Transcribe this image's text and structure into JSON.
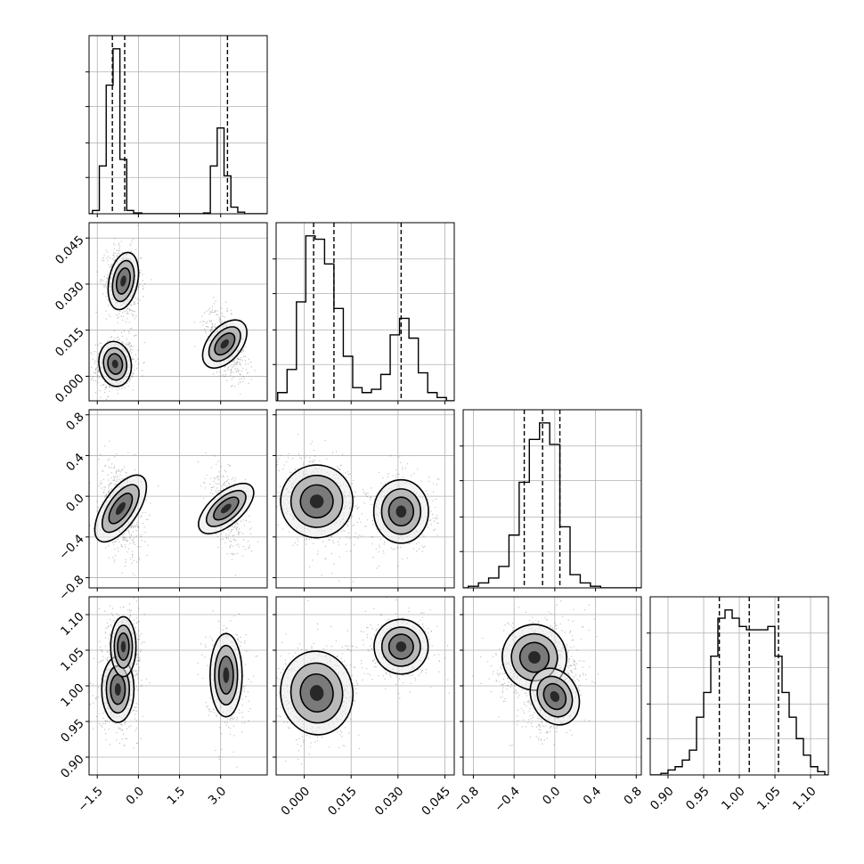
{
  "chart_data": {
    "type": "corner",
    "title": "",
    "grid": true,
    "params": [
      {
        "xlim": [
          -1.8,
          4.7
        ],
        "ticks": [
          -1.5,
          0.0,
          1.5,
          3.0
        ],
        "tick_labels": [
          "−1.5",
          "0.0",
          "1.5",
          "3.0"
        ],
        "quantiles": [
          -0.95,
          -0.5,
          3.25
        ],
        "hist": [
          {
            "x": -1.55,
            "v": 0.02
          },
          {
            "x": -1.3,
            "v": 0.29
          },
          {
            "x": -1.05,
            "v": 0.78
          },
          {
            "x": -0.8,
            "v": 1.0
          },
          {
            "x": -0.55,
            "v": 0.33
          },
          {
            "x": -0.3,
            "v": 0.02
          },
          {
            "x": 0.0,
            "v": 0.005
          },
          {
            "x": 2.5,
            "v": 0.005
          },
          {
            "x": 2.75,
            "v": 0.29
          },
          {
            "x": 3.0,
            "v": 0.52
          },
          {
            "x": 3.25,
            "v": 0.23
          },
          {
            "x": 3.5,
            "v": 0.04
          },
          {
            "x": 3.75,
            "v": 0.01
          }
        ]
      },
      {
        "xlim": [
          -0.009,
          0.048
        ],
        "ticks": [
          0.0,
          0.015,
          0.03,
          0.045
        ],
        "tick_labels": [
          "0.000",
          "0.015",
          "0.030",
          "0.045"
        ],
        "quantiles": [
          0.003,
          0.0095,
          0.031
        ],
        "hist": [
          {
            "x": -0.007,
            "v": 0.05
          },
          {
            "x": -0.004,
            "v": 0.19
          },
          {
            "x": -0.001,
            "v": 0.6
          },
          {
            "x": 0.002,
            "v": 1.0
          },
          {
            "x": 0.005,
            "v": 0.98
          },
          {
            "x": 0.008,
            "v": 0.83
          },
          {
            "x": 0.011,
            "v": 0.56
          },
          {
            "x": 0.014,
            "v": 0.27
          },
          {
            "x": 0.017,
            "v": 0.08
          },
          {
            "x": 0.02,
            "v": 0.05
          },
          {
            "x": 0.023,
            "v": 0.07
          },
          {
            "x": 0.026,
            "v": 0.16
          },
          {
            "x": 0.029,
            "v": 0.4
          },
          {
            "x": 0.032,
            "v": 0.5
          },
          {
            "x": 0.035,
            "v": 0.38
          },
          {
            "x": 0.038,
            "v": 0.17
          },
          {
            "x": 0.041,
            "v": 0.05
          },
          {
            "x": 0.044,
            "v": 0.02
          }
        ]
      },
      {
        "xlim": [
          -0.9,
          0.85
        ],
        "ticks": [
          -0.8,
          -0.4,
          0.0,
          0.4,
          0.8
        ],
        "tick_labels": [
          "−0.8",
          "−0.4",
          "0.0",
          "0.4",
          "0.8"
        ],
        "quantiles": [
          -0.3,
          -0.12,
          0.05
        ],
        "hist": [
          {
            "x": -0.8,
            "v": 0.01
          },
          {
            "x": -0.7,
            "v": 0.03
          },
          {
            "x": -0.6,
            "v": 0.06
          },
          {
            "x": -0.5,
            "v": 0.13
          },
          {
            "x": -0.4,
            "v": 0.32
          },
          {
            "x": -0.3,
            "v": 0.64
          },
          {
            "x": -0.2,
            "v": 0.9
          },
          {
            "x": -0.1,
            "v": 1.0
          },
          {
            "x": 0.0,
            "v": 0.87
          },
          {
            "x": 0.1,
            "v": 0.37
          },
          {
            "x": 0.2,
            "v": 0.08
          },
          {
            "x": 0.3,
            "v": 0.03
          },
          {
            "x": 0.4,
            "v": 0.01
          }
        ]
      },
      {
        "xlim": [
          0.875,
          1.125
        ],
        "ticks": [
          0.9,
          0.95,
          1.0,
          1.05,
          1.1
        ],
        "tick_labels": [
          "0.90",
          "0.95",
          "1.00",
          "1.05",
          "1.10"
        ],
        "quantiles": [
          0.972,
          1.014,
          1.055
        ],
        "hist": [
          {
            "x": 0.895,
            "v": 0.01
          },
          {
            "x": 0.905,
            "v": 0.03
          },
          {
            "x": 0.915,
            "v": 0.05
          },
          {
            "x": 0.925,
            "v": 0.09
          },
          {
            "x": 0.935,
            "v": 0.15
          },
          {
            "x": 0.945,
            "v": 0.35
          },
          {
            "x": 0.955,
            "v": 0.5
          },
          {
            "x": 0.965,
            "v": 0.72
          },
          {
            "x": 0.975,
            "v": 0.95
          },
          {
            "x": 0.985,
            "v": 1.0
          },
          {
            "x": 0.995,
            "v": 0.95
          },
          {
            "x": 1.005,
            "v": 0.9
          },
          {
            "x": 1.015,
            "v": 0.88
          },
          {
            "x": 1.025,
            "v": 0.88
          },
          {
            "x": 1.035,
            "v": 0.88
          },
          {
            "x": 1.045,
            "v": 0.9
          },
          {
            "x": 1.055,
            "v": 0.72
          },
          {
            "x": 1.065,
            "v": 0.5
          },
          {
            "x": 1.075,
            "v": 0.35
          },
          {
            "x": 1.085,
            "v": 0.22
          },
          {
            "x": 1.095,
            "v": 0.12
          },
          {
            "x": 1.105,
            "v": 0.05
          },
          {
            "x": 1.115,
            "v": 0.02
          }
        ]
      }
    ],
    "y_ticks": [
      null,
      {
        "ylim": [
          -0.008,
          0.05
        ],
        "ticks": [
          0.0,
          0.015,
          0.03,
          0.045
        ],
        "tick_labels": [
          "0.000",
          "0.015",
          "0.030",
          "0.045"
        ]
      },
      {
        "ylim": [
          -0.9,
          0.85
        ],
        "ticks": [
          -0.8,
          -0.4,
          0.0,
          0.4,
          0.8
        ],
        "tick_labels": [
          "−0.8",
          "−0.4",
          "0.0",
          "0.4",
          "0.8"
        ]
      },
      {
        "ylim": [
          0.875,
          1.125
        ],
        "ticks": [
          0.9,
          0.95,
          1.0,
          1.05,
          1.1
        ],
        "tick_labels": [
          "0.90",
          "0.95",
          "1.00",
          "1.05",
          "1.10"
        ]
      }
    ],
    "clusters": [
      {
        "pair": [
          0,
          1
        ],
        "mx": -0.85,
        "my": 0.004,
        "sx": 0.28,
        "sy": 0.0035,
        "r": 0.1,
        "w": 1.0
      },
      {
        "pair": [
          0,
          1
        ],
        "mx": -0.55,
        "my": 0.031,
        "sx": 0.25,
        "sy": 0.0045,
        "r": -0.1,
        "w": 1.0
      },
      {
        "pair": [
          0,
          1
        ],
        "mx": 3.15,
        "my": 0.0105,
        "sx": 0.3,
        "sy": 0.0045,
        "r": -0.5,
        "w": 0.8
      },
      {
        "pair": [
          0,
          2
        ],
        "mx": -0.65,
        "my": -0.12,
        "sx": 0.3,
        "sy": 0.18,
        "r": -0.3,
        "w": 1.0
      },
      {
        "pair": [
          0,
          2
        ],
        "mx": 3.2,
        "my": -0.12,
        "sx": 0.3,
        "sy": 0.17,
        "r": -0.55,
        "w": 0.6
      },
      {
        "pair": [
          0,
          3
        ],
        "mx": -0.75,
        "my": 0.995,
        "sx": 0.28,
        "sy": 0.022,
        "r": 0.0,
        "w": 1.0
      },
      {
        "pair": [
          0,
          3
        ],
        "mx": -0.55,
        "my": 1.055,
        "sx": 0.22,
        "sy": 0.02,
        "r": 0.0,
        "w": 1.0
      },
      {
        "pair": [
          0,
          3
        ],
        "mx": 3.2,
        "my": 1.015,
        "sx": 0.3,
        "sy": 0.03,
        "r": 0.0,
        "w": 0.6
      },
      {
        "pair": [
          1,
          2
        ],
        "mx": 0.004,
        "my": -0.05,
        "sx": 0.0055,
        "sy": 0.17,
        "r": -0.2,
        "w": 1.0
      },
      {
        "pair": [
          1,
          2
        ],
        "mx": 0.031,
        "my": -0.15,
        "sx": 0.0045,
        "sy": 0.16,
        "r": 0.0,
        "w": 0.6
      },
      {
        "pair": [
          1,
          3
        ],
        "mx": 0.004,
        "my": 0.99,
        "sx": 0.0055,
        "sy": 0.028,
        "r": 0.1,
        "w": 1.0
      },
      {
        "pair": [
          1,
          3
        ],
        "mx": 0.031,
        "my": 1.055,
        "sx": 0.0045,
        "sy": 0.02,
        "r": 0.1,
        "w": 0.55
      },
      {
        "pair": [
          2,
          3
        ],
        "mx": -0.2,
        "my": 1.04,
        "sx": 0.15,
        "sy": 0.022,
        "r": 0.3,
        "w": 1.0
      },
      {
        "pair": [
          2,
          3
        ],
        "mx": 0.0,
        "my": 0.985,
        "sx": 0.11,
        "sy": 0.02,
        "r": 0.4,
        "w": 0.9
      }
    ]
  }
}
